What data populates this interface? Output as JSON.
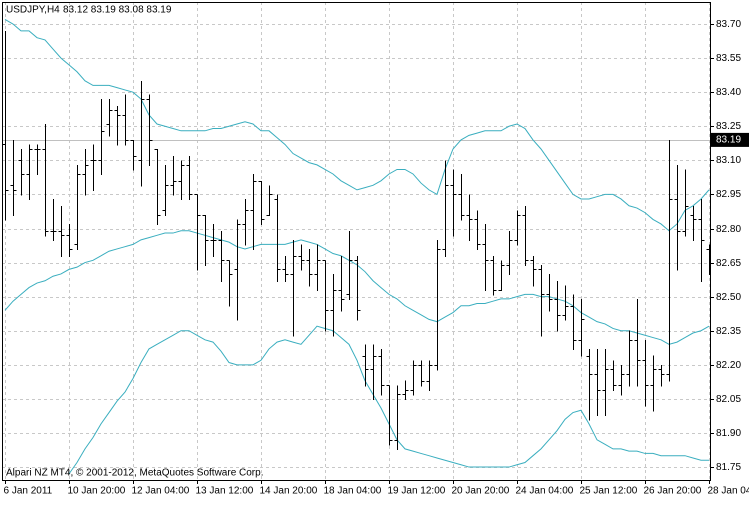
{
  "chart_data": {
    "type": "ohlc",
    "title": "USDJPY,H4",
    "subtitle": "83.12 83.19 83.08 83.19",
    "footer": "Alpari NZ MT4, © 2001-2012, MetaQuotes Software Corp.",
    "categories": [
      "6 Jan 2011",
      null,
      null,
      null,
      null,
      null,
      null,
      null,
      "10 Jan 20:00",
      null,
      null,
      null,
      null,
      null,
      null,
      null,
      "12 Jan 04:00",
      null,
      null,
      null,
      null,
      null,
      null,
      null,
      "13 Jan 12:00",
      null,
      null,
      null,
      null,
      null,
      null,
      null,
      "14 Jan 20:00",
      null,
      null,
      null,
      null,
      null,
      null,
      null,
      "18 Jan 04:00",
      null,
      null,
      null,
      null,
      null,
      null,
      null,
      "19 Jan 12:00",
      null,
      null,
      null,
      null,
      null,
      null,
      null,
      "20 Jan 20:00",
      null,
      null,
      null,
      null,
      null,
      null,
      null,
      "24 Jan 04:00",
      null,
      null,
      null,
      null,
      null,
      null,
      null,
      "25 Jan 12:00",
      null,
      null,
      null,
      null,
      null,
      null,
      null,
      "26 Jan 20:00",
      null,
      null,
      null,
      null,
      null,
      null,
      null,
      "28 Jan 04:"
    ],
    "color": "#000000",
    "open": [
      83.17,
      82.99,
      83.1,
      83.04,
      83.15,
      83.15,
      82.79,
      82.79,
      82.77,
      82.73,
      83.04,
      83.1,
      83.1,
      83.26,
      83.32,
      83.3,
      83.19,
      83.1,
      83.37,
      83.15,
      82.88,
      82.99,
      83.01,
      83.08,
      82.95,
      82.86,
      82.75,
      82.75,
      82.66,
      82.62,
      82.82,
      82.88,
      83.01,
      82.86,
      82.93,
      82.62,
      82.6,
      82.68,
      82.66,
      82.6,
      82.66,
      82.44,
      82.53,
      82.51,
      82.66,
      82.24,
      82.18,
      82.24,
      82.11,
      81.87,
      82.07,
      82.09,
      82.2,
      82.13,
      82.2,
      82.71,
      82.99,
      82.95,
      82.86,
      82.84,
      82.73,
      82.66,
      82.53,
      82.64,
      82.75,
      82.86,
      82.66,
      82.62,
      82.51,
      82.49,
      82.42,
      82.46,
      82.31,
      82.24,
      82.16,
      82.09,
      82.18,
      82.11,
      82.16,
      82.31,
      82.22,
      82.11,
      82.18,
      82.16,
      82.93,
      82.79,
      82.86,
      82.84,
      82.71
    ],
    "high": [
      83.67,
      83.19,
      83.15,
      83.17,
      83.17,
      83.26,
      82.93,
      82.9,
      82.82,
      83.08,
      83.15,
      83.17,
      83.37,
      83.37,
      83.34,
      83.39,
      83.19,
      83.45,
      83.39,
      83.15,
      83.08,
      83.12,
      83.1,
      83.12,
      82.95,
      82.86,
      82.82,
      82.79,
      82.66,
      82.84,
      82.93,
      83.04,
      83.01,
      82.99,
      82.95,
      82.68,
      82.75,
      82.73,
      82.71,
      82.73,
      82.66,
      82.6,
      82.68,
      82.79,
      82.68,
      82.29,
      82.29,
      82.27,
      82.11,
      82.11,
      82.13,
      82.22,
      82.22,
      82.22,
      82.75,
      83.1,
      83.06,
      83.04,
      82.95,
      82.88,
      82.82,
      82.68,
      82.66,
      82.79,
      82.88,
      82.9,
      82.68,
      82.64,
      82.6,
      82.57,
      82.55,
      82.51,
      82.49,
      82.27,
      82.27,
      82.27,
      82.22,
      82.2,
      82.35,
      82.49,
      82.31,
      82.24,
      82.2,
      83.19,
      83.08,
      83.06,
      82.9,
      82.93,
      82.73
    ],
    "low": [
      82.84,
      82.86,
      82.95,
      82.93,
      83.04,
      82.77,
      82.75,
      82.68,
      82.68,
      82.71,
      82.95,
      82.97,
      83.04,
      83.21,
      83.17,
      83.17,
      83.06,
      82.99,
      83.08,
      82.82,
      82.86,
      82.95,
      82.93,
      82.93,
      82.62,
      82.64,
      82.68,
      82.57,
      82.46,
      82.4,
      82.73,
      82.71,
      82.82,
      82.86,
      82.57,
      82.57,
      82.33,
      82.62,
      82.55,
      82.53,
      82.35,
      82.33,
      82.44,
      82.49,
      82.4,
      82.11,
      82.05,
      82.07,
      81.85,
      81.83,
      82.05,
      82.07,
      82.11,
      82.09,
      82.18,
      82.68,
      82.77,
      82.84,
      82.75,
      82.71,
      82.53,
      82.51,
      82.53,
      82.6,
      82.73,
      82.64,
      82.55,
      82.33,
      82.44,
      82.35,
      82.4,
      82.27,
      82.24,
      81.96,
      81.98,
      81.98,
      82.09,
      82.07,
      82.11,
      82.11,
      82.02,
      82.0,
      82.11,
      82.13,
      82.62,
      82.77,
      82.75,
      82.57,
      82.6
    ],
    "close": [
      82.97,
      82.97,
      83.04,
      83.15,
      83.15,
      82.79,
      82.79,
      82.77,
      82.71,
      83.04,
      83.08,
      83.1,
      83.23,
      83.32,
      83.3,
      83.19,
      83.12,
      83.37,
      83.19,
      82.86,
      82.99,
      83.01,
      83.08,
      82.95,
      82.86,
      82.75,
      82.75,
      82.66,
      82.6,
      82.82,
      82.88,
      83.01,
      82.84,
      82.95,
      82.62,
      82.6,
      82.68,
      82.66,
      82.6,
      82.66,
      82.44,
      82.53,
      82.49,
      82.66,
      82.44,
      82.18,
      82.24,
      82.11,
      81.87,
      82.07,
      82.09,
      82.2,
      82.13,
      82.2,
      82.71,
      82.99,
      82.95,
      82.86,
      82.84,
      82.73,
      82.66,
      82.53,
      82.64,
      82.75,
      82.86,
      82.66,
      82.62,
      82.51,
      82.49,
      82.42,
      82.46,
      82.31,
      82.4,
      82.16,
      82.09,
      82.18,
      82.11,
      82.16,
      82.31,
      82.22,
      82.11,
      82.18,
      82.16,
      82.93,
      82.79,
      82.9,
      82.84,
      82.75,
      82.65
    ],
    "band_color": "#3aaebf",
    "bands": {
      "upper": [
        83.72,
        83.7,
        83.67,
        83.67,
        83.64,
        83.63,
        83.59,
        83.55,
        83.52,
        83.49,
        83.45,
        83.43,
        83.43,
        83.43,
        83.42,
        83.41,
        83.4,
        83.37,
        83.3,
        83.26,
        83.25,
        83.24,
        83.23,
        83.23,
        83.23,
        83.23,
        83.24,
        83.24,
        83.25,
        83.26,
        83.27,
        83.26,
        83.23,
        83.23,
        83.2,
        83.17,
        83.13,
        83.11,
        83.09,
        83.08,
        83.06,
        83.04,
        83.01,
        82.99,
        82.97,
        82.98,
        82.99,
        83.01,
        83.04,
        83.06,
        83.06,
        83.04,
        83.0,
        82.97,
        82.95,
        83.06,
        83.15,
        83.19,
        83.21,
        83.22,
        83.23,
        83.23,
        83.23,
        83.25,
        83.26,
        83.24,
        83.19,
        83.15,
        83.1,
        83.05,
        83.0,
        82.95,
        82.93,
        82.93,
        82.94,
        82.95,
        82.95,
        82.93,
        82.9,
        82.89,
        82.87,
        82.84,
        82.82,
        82.79,
        82.82,
        82.88,
        82.9,
        82.93,
        82.97
      ],
      "middle": [
        82.44,
        82.48,
        82.51,
        82.54,
        82.56,
        82.57,
        82.59,
        82.6,
        82.62,
        82.63,
        82.65,
        82.66,
        82.68,
        82.7,
        82.71,
        82.72,
        82.73,
        82.75,
        82.76,
        82.77,
        82.78,
        82.78,
        82.79,
        82.79,
        82.78,
        82.77,
        82.76,
        82.75,
        82.74,
        82.72,
        82.71,
        82.72,
        82.73,
        82.73,
        82.73,
        82.73,
        82.74,
        82.75,
        82.74,
        82.73,
        82.71,
        82.69,
        82.68,
        82.66,
        82.64,
        82.61,
        82.57,
        82.54,
        82.51,
        82.49,
        82.46,
        82.44,
        82.42,
        82.4,
        82.39,
        82.41,
        82.43,
        82.46,
        82.46,
        82.47,
        82.47,
        82.48,
        82.49,
        82.49,
        82.5,
        82.51,
        82.51,
        82.5,
        82.5,
        82.49,
        82.48,
        82.46,
        82.43,
        82.41,
        82.39,
        82.38,
        82.36,
        82.35,
        82.35,
        82.34,
        82.33,
        82.32,
        82.31,
        82.29,
        82.3,
        82.32,
        82.34,
        82.35,
        82.37
      ],
      "lower": [
        null,
        null,
        null,
        null,
        null,
        null,
        null,
        null,
        81.72,
        81.77,
        81.83,
        81.88,
        81.94,
        81.99,
        82.04,
        82.08,
        82.14,
        82.21,
        82.27,
        82.29,
        82.31,
        82.33,
        82.35,
        82.35,
        82.33,
        82.31,
        82.3,
        82.26,
        82.21,
        82.2,
        82.2,
        82.2,
        82.22,
        82.27,
        82.3,
        82.31,
        82.3,
        82.29,
        82.33,
        82.37,
        82.36,
        82.35,
        82.32,
        82.29,
        82.22,
        82.13,
        82.07,
        82.01,
        81.94,
        81.87,
        81.83,
        81.82,
        81.81,
        81.8,
        81.79,
        81.78,
        81.77,
        81.76,
        81.75,
        81.75,
        81.75,
        81.75,
        81.75,
        81.75,
        81.76,
        81.77,
        81.8,
        81.83,
        81.87,
        81.91,
        81.96,
        81.99,
        82.0,
        81.94,
        81.87,
        81.85,
        81.83,
        81.83,
        81.82,
        81.82,
        81.81,
        81.81,
        81.8,
        81.8,
        81.8,
        81.8,
        81.79,
        81.78,
        81.78
      ]
    },
    "current_price": 83.19,
    "ylim": [
      81.693,
      83.797
    ],
    "yticks": [
      {
        "value": 83.7,
        "label": "83.70"
      },
      83.55,
      {
        "value": 83.4,
        "label": "83.40"
      },
      83.25,
      {
        "value": 83.1,
        "label": "83.10"
      },
      82.95,
      {
        "value": 82.8,
        "label": "82.80"
      },
      82.65,
      {
        "value": 82.5,
        "label": "82.50"
      },
      82.35,
      {
        "value": 82.2,
        "label": "82.20"
      },
      82.05,
      {
        "value": 81.9,
        "label": "81.90"
      },
      81.75
    ],
    "grid": true
  }
}
